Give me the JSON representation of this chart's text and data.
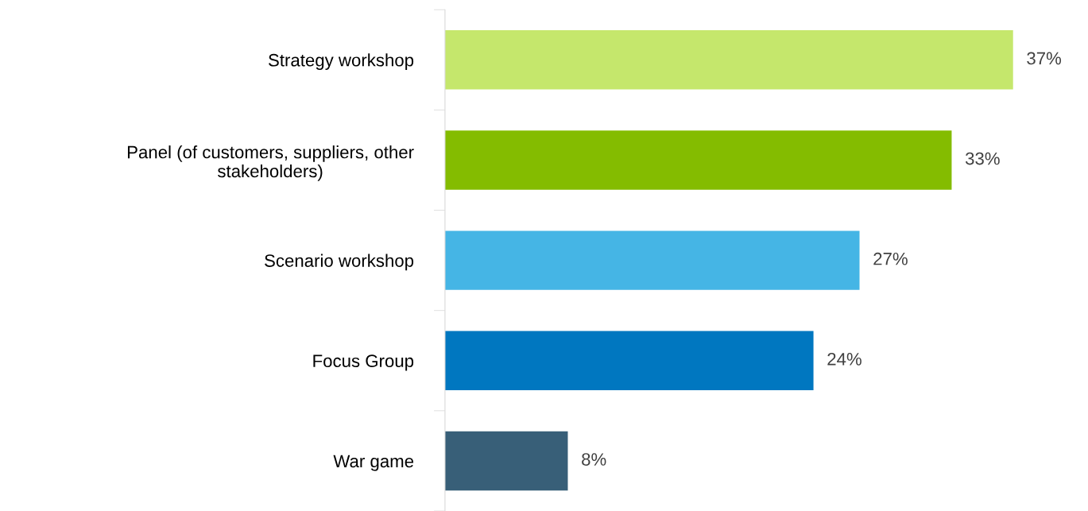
{
  "chart_data": {
    "type": "bar",
    "orientation": "horizontal",
    "categories": [
      "Strategy workshop",
      "Panel (of customers, suppliers, other\nstakeholders)",
      "Scenario workshop",
      "Focus Group",
      "War game"
    ],
    "values": [
      37,
      33,
      27,
      24,
      8
    ],
    "colors": [
      "#c5e76c",
      "#84bc00",
      "#45b5e5",
      "#0077c0",
      "#385f78"
    ],
    "value_labels": [
      "37%",
      "33%",
      "27%",
      "24%",
      "8%"
    ],
    "grid": false,
    "legend": false,
    "tick_labels": "y"
  }
}
